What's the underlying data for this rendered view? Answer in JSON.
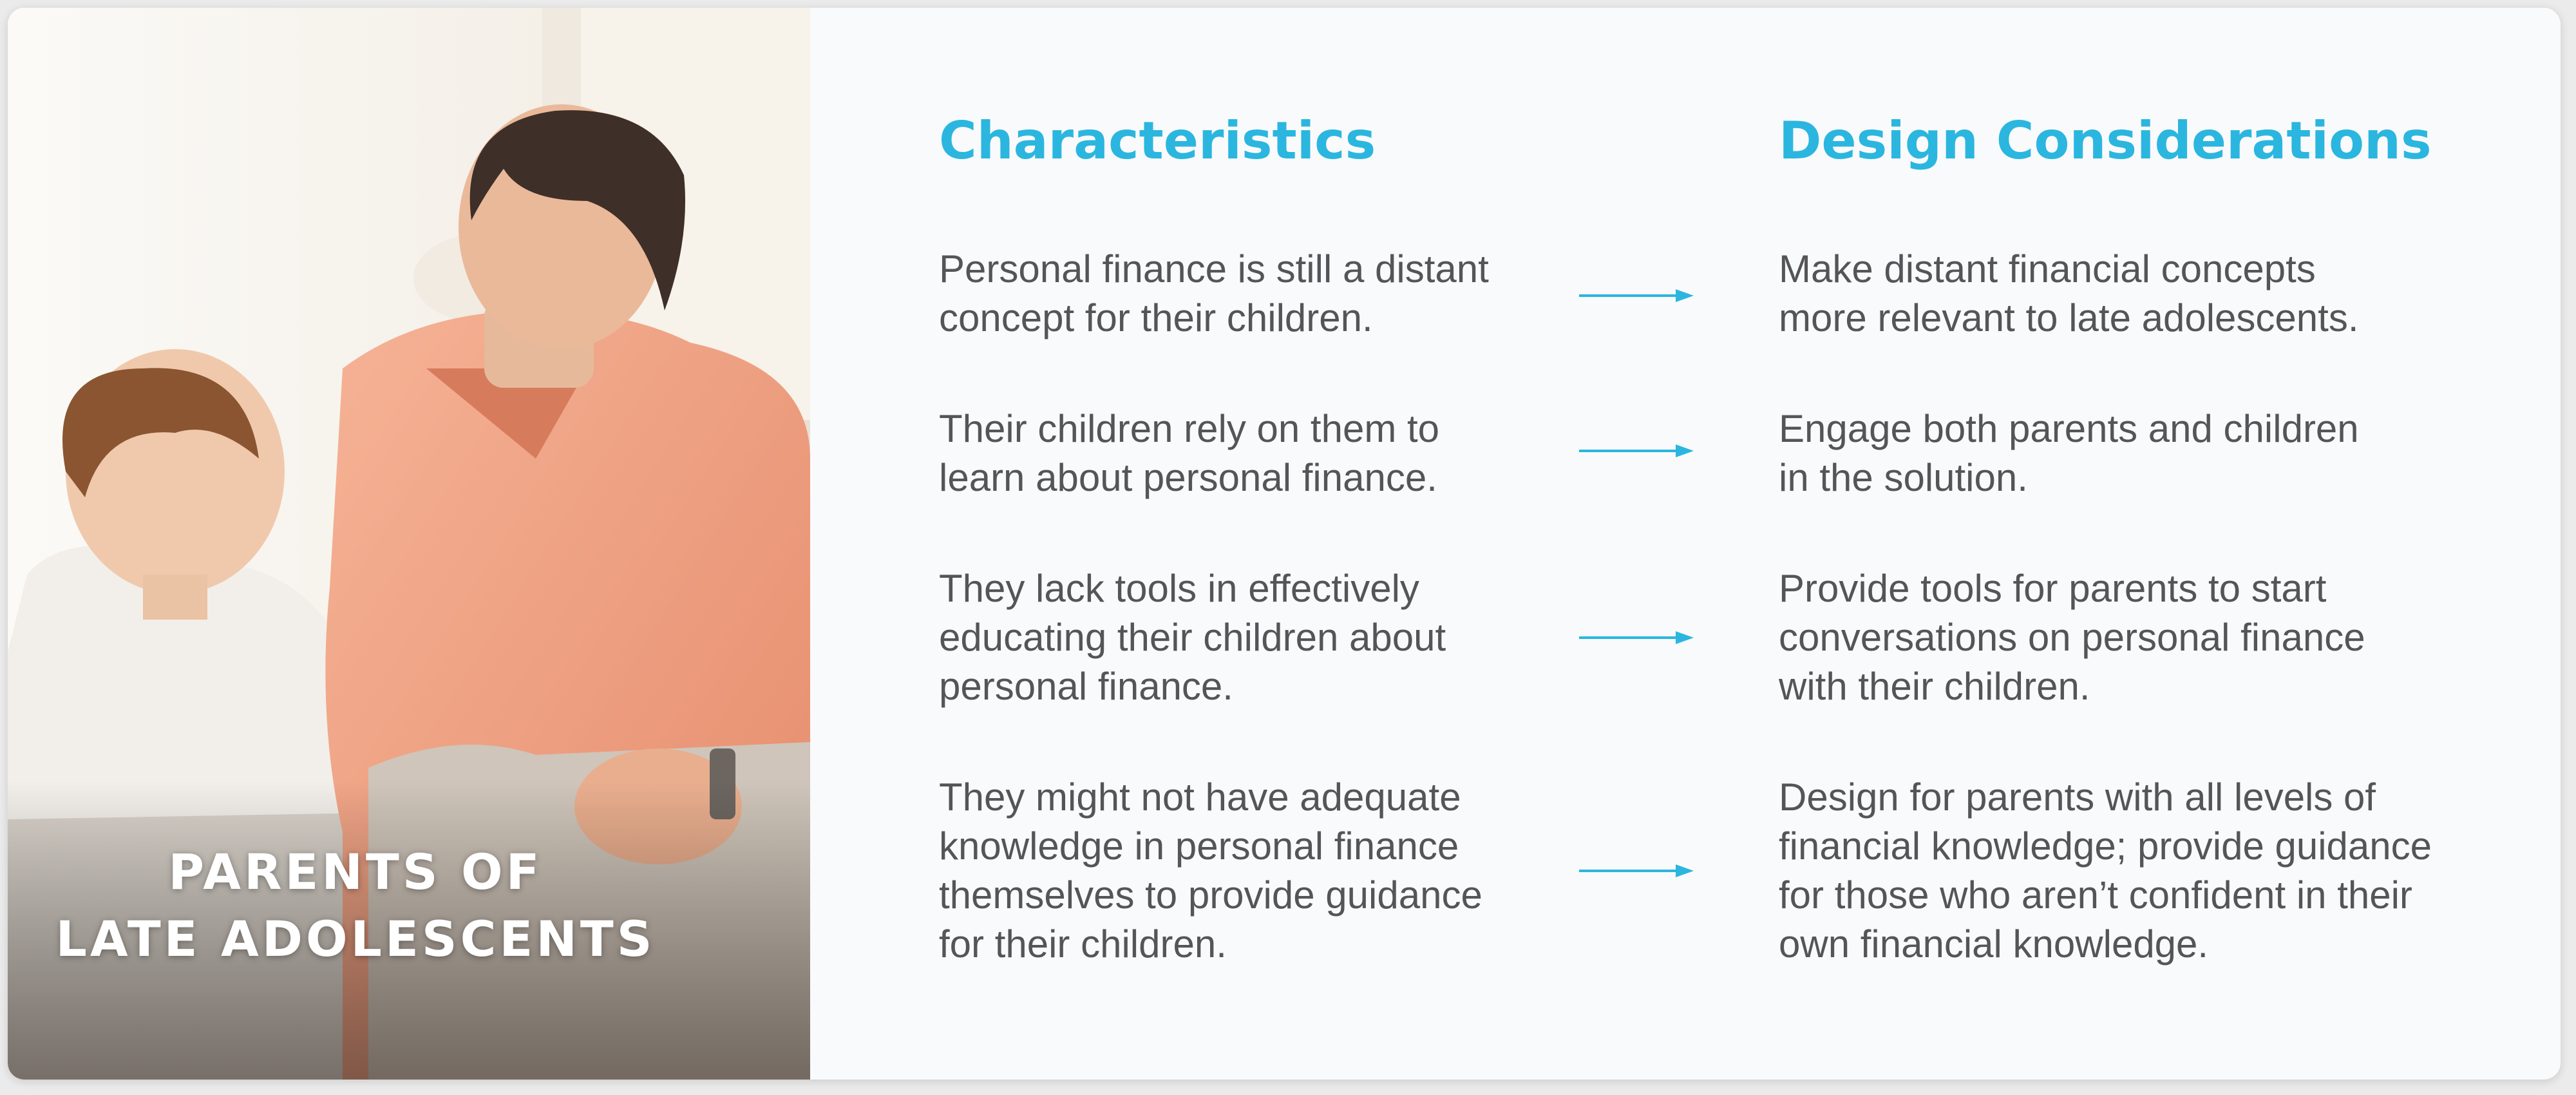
{
  "panel": {
    "title_lines": [
      "PARENTS OF",
      "LATE ADOLESCENTS"
    ]
  },
  "columns": {
    "characteristics_heading": "Characteristics",
    "design_heading": "Design Considerations"
  },
  "rows": [
    {
      "characteristic": [
        "Personal finance is still a distant",
        "concept for their children."
      ],
      "consideration": [
        "Make distant financial concepts",
        "more relevant to late adolescents."
      ]
    },
    {
      "characteristic": [
        "Their children rely on them to",
        "learn about personal finance."
      ],
      "consideration": [
        "Engage both parents and children",
        "in the solution."
      ]
    },
    {
      "characteristic": [
        "They lack tools in effectively",
        "educating their children about",
        "personal finance."
      ],
      "consideration": [
        "Provide tools for parents to start",
        "conversations on personal finance",
        "with their children."
      ]
    },
    {
      "characteristic": [
        "They might not have adequate",
        "knowledge in personal finance",
        "themselves to provide guidance",
        "for their children."
      ],
      "consideration": [
        "Design for parents with all levels of",
        "financial knowledge; provide guidance",
        "for those who aren’t confident in their",
        "own financial knowledge."
      ]
    }
  ],
  "colors": {
    "accent": "#2bb6df",
    "body_text": "#555558",
    "background": "#f9fafb"
  }
}
